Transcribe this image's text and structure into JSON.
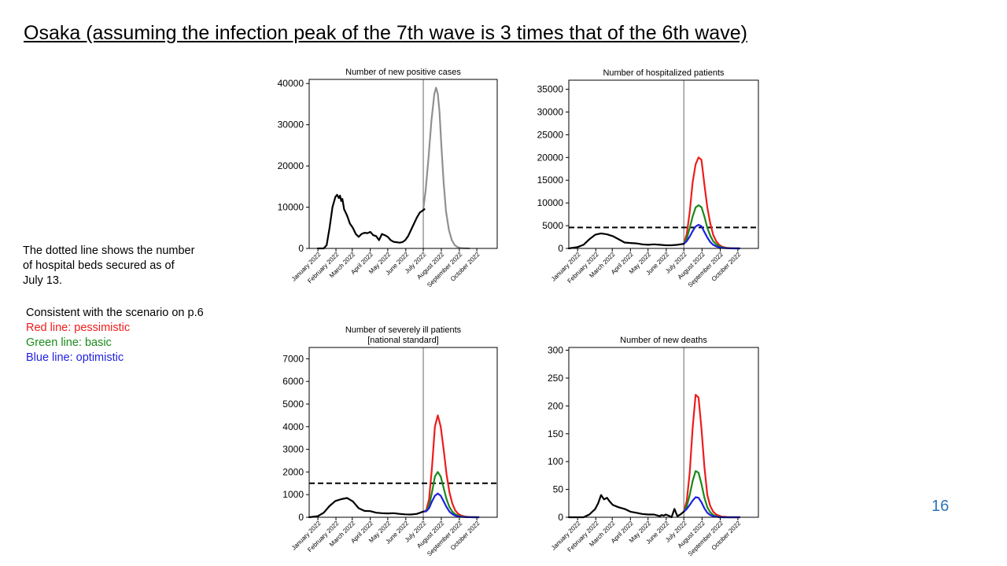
{
  "slide": {
    "title": "Osaka (assuming the infection peak of the 7th wave is 3 times that of the 6th wave)",
    "note": "The dotted line shows the number of hospital beds secured as of July 13.",
    "legend_intro": "Consistent with the scenario on p.6",
    "legend_red": "Red line: pessimistic",
    "legend_green": "Green line: basic",
    "legend_blue": "Blue line: optimistic",
    "page_number": "16"
  },
  "colors": {
    "actual": "#000000",
    "projection_single": "#909090",
    "pessimistic": "#ee1c1c",
    "basic": "#1a8a1a",
    "optimistic": "#1f1fe0",
    "divider": "#808080"
  },
  "chart_data": [
    {
      "type": "line",
      "title": [
        "Number of new positive cases"
      ],
      "xlabel": "",
      "ylabel": "",
      "x_ticks": [
        "January 2022",
        "February 2022",
        "March 2022",
        "April 2022",
        "May 2022",
        "June 2022",
        "July 2022",
        "August 2022",
        "September 2022",
        "October 2022"
      ],
      "x_ticks_at": [
        0,
        31,
        59,
        90,
        120,
        151,
        181,
        212,
        243,
        273
      ],
      "x_unit": "days from 2022-01-01",
      "xlim": [
        -15,
        308
      ],
      "ylim": [
        0,
        41000
      ],
      "y_ticks": [
        0,
        10000,
        20000,
        30000,
        40000
      ],
      "divider_x": 181,
      "grid": false,
      "series": [
        {
          "role": "actual",
          "x": [
            0,
            10,
            15,
            20,
            25,
            30,
            33,
            36,
            38,
            40,
            42,
            45,
            50,
            55,
            60,
            65,
            70,
            75,
            80,
            85,
            90,
            95,
            100,
            105,
            110,
            113,
            115,
            120,
            125,
            130,
            135,
            140,
            145,
            150,
            155,
            160,
            165,
            170,
            175,
            180,
            183
          ],
          "values": [
            0,
            0,
            800,
            5000,
            10000,
            12500,
            13000,
            12200,
            12800,
            11500,
            12000,
            9500,
            8000,
            6000,
            5000,
            3500,
            2800,
            3500,
            3800,
            3700,
            4000,
            3200,
            3000,
            2000,
            3500,
            3300,
            3200,
            2800,
            2000,
            1600,
            1500,
            1400,
            1500,
            2000,
            3000,
            4500,
            6000,
            7500,
            8700,
            9200,
            9500
          ]
        },
        {
          "role": "projection",
          "x": [
            181,
            185,
            190,
            195,
            200,
            203,
            206,
            209,
            212,
            216,
            220,
            225,
            230,
            235,
            240,
            245,
            250,
            255,
            260
          ],
          "values": [
            9500,
            14000,
            22000,
            31000,
            37500,
            39000,
            37500,
            33000,
            25000,
            16000,
            9000,
            4500,
            2000,
            800,
            300,
            100,
            40,
            10,
            0
          ]
        }
      ]
    },
    {
      "type": "line",
      "title": [
        "Number of hospitalized patients"
      ],
      "xlabel": "",
      "ylabel": "",
      "x_ticks": [
        "January 2022",
        "February 2022",
        "March 2022",
        "April 2022",
        "May 2022",
        "June 2022",
        "July 2022",
        "August 2022",
        "September 2022",
        "October 2022"
      ],
      "x_ticks_at": [
        0,
        31,
        59,
        90,
        120,
        151,
        181,
        212,
        243,
        273
      ],
      "x_unit": "days from 2022-01-01",
      "xlim": [
        -15,
        308
      ],
      "ylim": [
        0,
        37000
      ],
      "y_ticks": [
        0,
        5000,
        10000,
        15000,
        20000,
        25000,
        30000,
        35000
      ],
      "divider_x": 181,
      "bed_capacity": 4600,
      "grid": false,
      "series": [
        {
          "role": "actual",
          "x": [
            -15,
            0,
            10,
            20,
            30,
            40,
            50,
            60,
            70,
            80,
            90,
            100,
            110,
            120,
            130,
            140,
            150,
            160,
            170,
            181
          ],
          "values": [
            0,
            300,
            800,
            2000,
            3000,
            3300,
            3100,
            2700,
            2000,
            1300,
            1200,
            1100,
            900,
            800,
            900,
            800,
            700,
            700,
            800,
            1000
          ]
        },
        {
          "name": "pessimistic",
          "role": "pessimistic",
          "x": [
            181,
            186,
            191,
            196,
            201,
            206,
            211,
            216,
            221,
            226,
            231,
            236,
            241,
            246,
            251,
            256,
            261,
            266,
            271,
            276
          ],
          "values": [
            1000,
            3200,
            8000,
            14500,
            18500,
            20000,
            19500,
            14000,
            9000,
            5500,
            3000,
            1600,
            800,
            400,
            200,
            100,
            50,
            20,
            10,
            0
          ]
        },
        {
          "name": "basic",
          "role": "basic",
          "x": [
            181,
            186,
            191,
            196,
            201,
            206,
            211,
            216,
            221,
            226,
            231,
            236,
            241,
            246,
            251,
            256,
            261,
            266,
            271,
            276
          ],
          "values": [
            1000,
            2200,
            4500,
            7000,
            9000,
            9500,
            9100,
            7000,
            4500,
            2800,
            1600,
            900,
            500,
            250,
            120,
            60,
            30,
            10,
            5,
            0
          ]
        },
        {
          "name": "optimistic",
          "role": "optimistic",
          "x": [
            181,
            186,
            191,
            196,
            201,
            206,
            211,
            216,
            221,
            226,
            231,
            236,
            241,
            246,
            251,
            256,
            261,
            266,
            271,
            276
          ],
          "values": [
            1000,
            1600,
            2600,
            3800,
            4800,
            5200,
            4900,
            3600,
            2400,
            1400,
            800,
            450,
            250,
            120,
            60,
            30,
            15,
            5,
            2,
            0
          ]
        }
      ]
    },
    {
      "type": "line",
      "title": [
        "Number of severely ill patients",
        "[national standard]"
      ],
      "xlabel": "",
      "ylabel": "",
      "x_ticks": [
        "January 2022",
        "February 2022",
        "March 2022",
        "April 2022",
        "May 2022",
        "June 2022",
        "July 2022",
        "August 2022",
        "September 2022",
        "October 2022"
      ],
      "x_ticks_at": [
        0,
        31,
        59,
        90,
        120,
        151,
        181,
        212,
        243,
        273
      ],
      "x_unit": "days from 2022-01-01",
      "xlim": [
        -15,
        308
      ],
      "ylim": [
        0,
        7500
      ],
      "y_ticks": [
        0,
        1000,
        2000,
        3000,
        4000,
        5000,
        6000,
        7000
      ],
      "divider_x": 181,
      "bed_capacity": 1500,
      "grid": false,
      "series": [
        {
          "role": "actual",
          "x": [
            -15,
            0,
            10,
            20,
            30,
            40,
            50,
            60,
            70,
            80,
            90,
            100,
            110,
            120,
            130,
            140,
            150,
            160,
            170,
            181
          ],
          "values": [
            0,
            50,
            200,
            500,
            720,
            800,
            850,
            700,
            400,
            280,
            270,
            200,
            180,
            170,
            180,
            150,
            130,
            120,
            150,
            250
          ]
        },
        {
          "name": "pessimistic",
          "role": "pessimistic",
          "x": [
            181,
            186,
            191,
            196,
            201,
            206,
            211,
            216,
            221,
            226,
            231,
            236,
            241,
            246,
            251,
            256,
            261,
            266,
            271,
            276
          ],
          "values": [
            250,
            300,
            800,
            2200,
            4000,
            4500,
            4000,
            3000,
            1900,
            1100,
            600,
            300,
            150,
            80,
            40,
            20,
            10,
            5,
            2,
            0
          ]
        },
        {
          "name": "basic",
          "role": "basic",
          "x": [
            181,
            186,
            191,
            196,
            201,
            206,
            211,
            216,
            221,
            226,
            231,
            236,
            241,
            246,
            251,
            256,
            261,
            266,
            271,
            276
          ],
          "values": [
            250,
            280,
            500,
            1100,
            1800,
            2000,
            1800,
            1300,
            800,
            450,
            250,
            130,
            70,
            35,
            18,
            8,
            4,
            2,
            1,
            0
          ]
        },
        {
          "name": "optimistic",
          "role": "optimistic",
          "x": [
            181,
            186,
            191,
            196,
            201,
            206,
            211,
            216,
            221,
            226,
            231,
            236,
            241,
            246,
            251,
            256,
            261,
            266,
            271,
            276
          ],
          "values": [
            250,
            260,
            400,
            700,
            950,
            1050,
            950,
            700,
            450,
            250,
            140,
            70,
            35,
            18,
            9,
            4,
            2,
            1,
            0,
            0
          ]
        }
      ]
    },
    {
      "type": "line",
      "title": [
        "Number of new deaths"
      ],
      "xlabel": "",
      "ylabel": "",
      "x_ticks": [
        "January 2022",
        "February 2022",
        "March 2022",
        "April 2022",
        "May 2022",
        "June 2022",
        "July 2022",
        "August 2022",
        "September 2022",
        "October 2022"
      ],
      "x_ticks_at": [
        0,
        31,
        59,
        90,
        120,
        151,
        181,
        212,
        243,
        273
      ],
      "x_unit": "days from 2022-01-01",
      "xlim": [
        -15,
        308
      ],
      "ylim": [
        0,
        305
      ],
      "y_ticks": [
        0,
        50,
        100,
        150,
        200,
        250,
        300
      ],
      "divider_x": 181,
      "grid": false,
      "series": [
        {
          "role": "actual",
          "x": [
            -15,
            10,
            20,
            30,
            35,
            40,
            45,
            50,
            55,
            60,
            70,
            80,
            90,
            100,
            110,
            120,
            130,
            140,
            143,
            147,
            150,
            155,
            160,
            165,
            170,
            175,
            181
          ],
          "values": [
            0,
            0,
            5,
            15,
            25,
            40,
            32,
            35,
            28,
            22,
            18,
            15,
            10,
            8,
            6,
            5,
            5,
            2,
            4,
            3,
            5,
            3,
            0,
            15,
            2,
            5,
            10
          ]
        },
        {
          "name": "pessimistic",
          "role": "pessimistic",
          "x": [
            181,
            186,
            191,
            196,
            201,
            206,
            211,
            216,
            221,
            226,
            231,
            236,
            241,
            246,
            251,
            256,
            261,
            266,
            271,
            276
          ],
          "values": [
            10,
            30,
            80,
            160,
            220,
            215,
            160,
            90,
            40,
            20,
            10,
            5,
            3,
            1,
            1,
            0,
            0,
            0,
            0,
            0
          ]
        },
        {
          "name": "basic",
          "role": "basic",
          "x": [
            181,
            186,
            191,
            196,
            201,
            206,
            211,
            216,
            221,
            226,
            231,
            236,
            241,
            246,
            251,
            256,
            261,
            266,
            271,
            276
          ],
          "values": [
            10,
            20,
            40,
            65,
            83,
            80,
            60,
            35,
            18,
            9,
            4,
            2,
            1,
            0,
            0,
            0,
            0,
            0,
            0,
            0
          ]
        },
        {
          "name": "optimistic",
          "role": "optimistic",
          "x": [
            181,
            186,
            191,
            196,
            201,
            206,
            211,
            216,
            221,
            226,
            231,
            236,
            241,
            246,
            251,
            256,
            261,
            266,
            271,
            276
          ],
          "values": [
            10,
            15,
            22,
            30,
            36,
            35,
            27,
            16,
            8,
            4,
            2,
            1,
            0,
            0,
            0,
            0,
            0,
            0,
            0,
            0
          ]
        }
      ]
    }
  ]
}
